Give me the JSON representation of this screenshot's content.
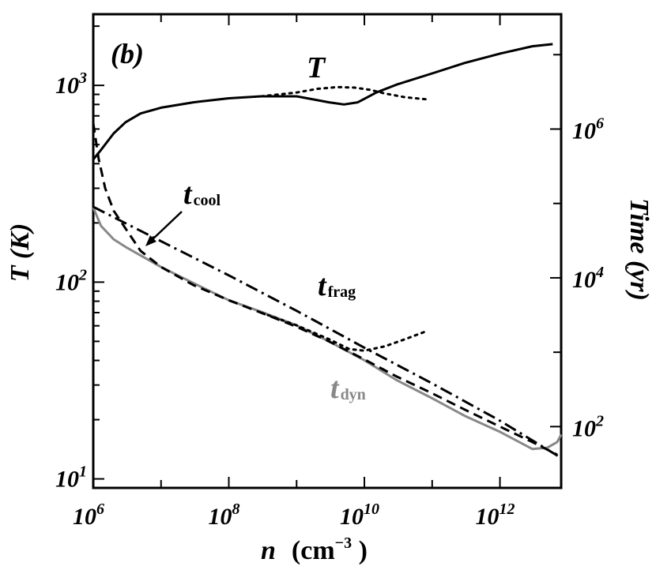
{
  "chart_data": {
    "type": "line",
    "panel_label": "(b)",
    "xlabel": {
      "var": "n",
      "unit": "(cm",
      "exp": "−3",
      "close": " )"
    },
    "ylabel_left": "T (K)",
    "ylabel_right": "Time (yr)",
    "x_scale": "log",
    "y_left_scale": "log",
    "y_right_scale": "log",
    "xlim": [
      1000000.0,
      8000000000000.0
    ],
    "ylim_left": [
      9,
      2300
    ],
    "ylim_right": [
      15,
      35000000.0
    ],
    "x_ticks": [
      {
        "base": "10",
        "exp": "6"
      },
      {
        "base": "10",
        "exp": "8"
      },
      {
        "base": "10",
        "exp": "10"
      },
      {
        "base": "10",
        "exp": "12"
      }
    ],
    "y_left_ticks": [
      {
        "base": "10",
        "exp": "1"
      },
      {
        "base": "10",
        "exp": "2"
      },
      {
        "base": "10",
        "exp": "3"
      }
    ],
    "y_right_ticks": [
      {
        "base": "10",
        "exp": "2"
      },
      {
        "base": "10",
        "exp": "4"
      },
      {
        "base": "10",
        "exp": "6"
      }
    ],
    "labels": {
      "T": "T",
      "t_cool": {
        "main": "t",
        "sub": "cool"
      },
      "t_frag": {
        "main": "t",
        "sub": "frag"
      },
      "t_dyn": {
        "main": "t",
        "sub": "dyn"
      }
    },
    "series": [
      {
        "axis": "left",
        "style": "solid",
        "color": "#000000",
        "x": [
          1000000.0,
          1300000.0,
          2000000.0,
          3000000.0,
          5000000.0,
          10000000.0,
          30000000.0,
          100000000.0,
          300000000.0,
          1000000000.0,
          3000000000.0,
          5000000000.0,
          8000000000.0,
          15000000000.0,
          30000000000.0,
          100000000000.0,
          300000000000.0,
          1000000000000.0,
          3000000000000.0,
          6000000000000.0
        ],
        "y": [
          420,
          470,
          570,
          650,
          720,
          770,
          820,
          860,
          880,
          880,
          820,
          800,
          820,
          920,
          1010,
          1150,
          1300,
          1450,
          1580,
          1620
        ]
      },
      {
        "axis": "left",
        "style": "dotted",
        "color": "#000000",
        "x": [
          300000000.0,
          1000000000.0,
          2000000000.0,
          4000000000.0,
          7000000000.0,
          12000000000.0,
          20000000000.0,
          40000000000.0,
          80000000000.0
        ],
        "y": [
          880,
          920,
          960,
          980,
          975,
          950,
          910,
          870,
          850
        ]
      },
      {
        "axis": "right",
        "style": "solid",
        "color": "#888888",
        "x": [
          1000000.0,
          1300000.0,
          2000000.0,
          3000000.0,
          5000000.0,
          10000000.0,
          30000000.0,
          100000000.0,
          300000000.0,
          1000000000.0,
          3000000000.0,
          10000000000.0,
          30000000000.0,
          100000000000.0,
          300000000000.0,
          1000000000000.0,
          3000000000000.0,
          5000000000000.0,
          7000000000000.0,
          8000000000000.0
        ],
        "y": [
          88000.0,
          50000.0,
          33000.0,
          26000.0,
          20000.0,
          14000.0,
          8500.0,
          5000.0,
          3500.0,
          2300.0,
          1400.0,
          780,
          420,
          240,
          140,
          85,
          50,
          52,
          62,
          78
        ]
      },
      {
        "axis": "right",
        "style": "dashed",
        "color": "#000000",
        "x": [
          1000000.0,
          1200000.0,
          1500000.0,
          2000000.0,
          3000000.0,
          5000000.0,
          10000000.0,
          30000000.0,
          100000000.0,
          300000000.0,
          1000000000.0,
          3000000000.0,
          10000000000.0,
          30000000000.0,
          100000000000.0,
          300000000000.0,
          1000000000000.0,
          3000000000000.0,
          7000000000000.0
        ],
        "y": [
          1200000.0,
          400000.0,
          160000.0,
          80000.0,
          46000.0,
          23000.0,
          14000.0,
          8000.0,
          5000.0,
          3400.0,
          2200.0,
          1400.0,
          800,
          470,
          280,
          170,
          100,
          62,
          42
        ]
      },
      {
        "axis": "right",
        "style": "dashdot",
        "color": "#000000",
        "x": [
          1000000.0,
          10000000.0,
          100000000.0,
          1000000000.0,
          10000000000.0,
          100000000000.0,
          1000000000000.0,
          8000000000000.0
        ],
        "y": [
          90000.0,
          31000.0,
          10800.0,
          3600.0,
          1150.0,
          380,
          120,
          38
        ]
      },
      {
        "axis": "right",
        "style": "dotted",
        "color": "#000000",
        "x": [
          300000000.0,
          1000000000.0,
          3000000000.0,
          6000000000.0,
          10000000000.0,
          20000000000.0,
          40000000000.0,
          80000000000.0
        ],
        "y": [
          3400.0,
          2300.0,
          1500.0,
          1100.0,
          1050.0,
          1200.0,
          1500.0,
          1900.0
        ]
      }
    ]
  }
}
